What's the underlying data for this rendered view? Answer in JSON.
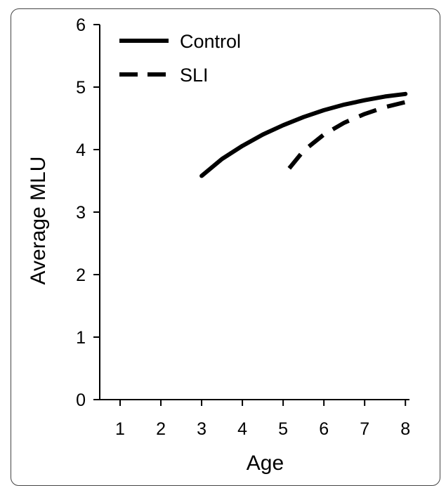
{
  "chart_data": {
    "type": "line",
    "title": "",
    "xlabel": "Age",
    "ylabel": "Average MLU",
    "xlim": [
      0.5,
      8.1
    ],
    "ylim": [
      0,
      6
    ],
    "x_ticks": [
      1,
      2,
      3,
      4,
      5,
      6,
      7,
      8
    ],
    "y_ticks": [
      0,
      1,
      2,
      3,
      4,
      5,
      6
    ],
    "grid": false,
    "legend_position": "top-left",
    "series": [
      {
        "name": "Control",
        "style": "solid",
        "color": "#000000",
        "x": [
          3.0,
          3.5,
          4.0,
          4.5,
          5.0,
          5.5,
          6.0,
          6.5,
          7.0,
          7.5,
          8.0
        ],
        "y": [
          3.58,
          3.85,
          4.06,
          4.24,
          4.39,
          4.52,
          4.63,
          4.72,
          4.79,
          4.85,
          4.89
        ]
      },
      {
        "name": "SLI",
        "style": "dashed",
        "color": "#000000",
        "x": [
          5.15,
          5.5,
          6.0,
          6.5,
          7.0,
          7.5,
          8.0
        ],
        "y": [
          3.7,
          3.98,
          4.24,
          4.43,
          4.57,
          4.68,
          4.76
        ]
      }
    ]
  }
}
